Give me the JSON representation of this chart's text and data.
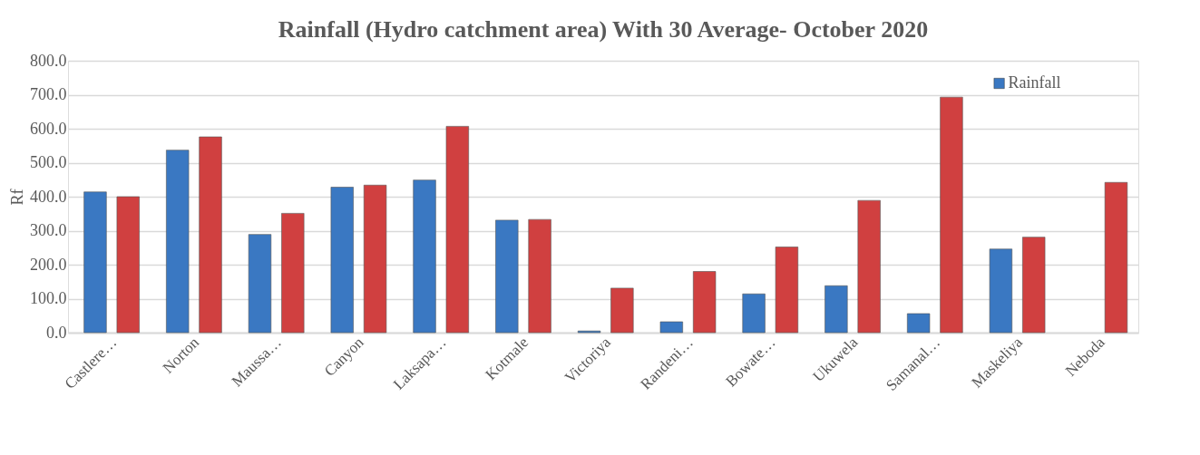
{
  "chart_data": {
    "type": "bar",
    "title": "Rainfall (Hydro catchment area) With 30 Average- October 2020",
    "ylabel": "Rf",
    "categories": [
      "Castlere…",
      "Norton",
      "Maussa…",
      "Canyon",
      "Laksapa…",
      "Kotmale",
      "Victoriya",
      "Randeni…",
      "Bowate…",
      "Ukuwela",
      "Samanal…",
      "Maskeliya",
      "Neboda"
    ],
    "series": [
      {
        "name": "Rainfall",
        "color": "#3a78c2",
        "values": [
          414,
          537,
          289,
          428,
          449,
          331,
          5,
          32,
          114,
          138,
          56,
          246,
          null
        ]
      },
      {
        "color": "#d04040",
        "values": [
          400,
          576,
          351,
          434,
          607,
          333,
          131,
          180,
          252,
          389,
          693,
          281,
          442
        ]
      }
    ],
    "ylim": [
      0,
      800
    ],
    "yticks": [
      {
        "value": 0,
        "label": "0.0"
      },
      {
        "value": 100,
        "label": "100.0"
      },
      {
        "value": 200,
        "label": "200.0"
      },
      {
        "value": 300,
        "label": "300.0"
      },
      {
        "value": 400,
        "label": "400.0"
      },
      {
        "value": 500,
        "label": "500.0"
      },
      {
        "value": 600,
        "label": "600.0"
      },
      {
        "value": 700,
        "label": "700.0"
      },
      {
        "value": 800,
        "label": "800.0"
      }
    ],
    "grid": "y",
    "legend": "top right"
  }
}
